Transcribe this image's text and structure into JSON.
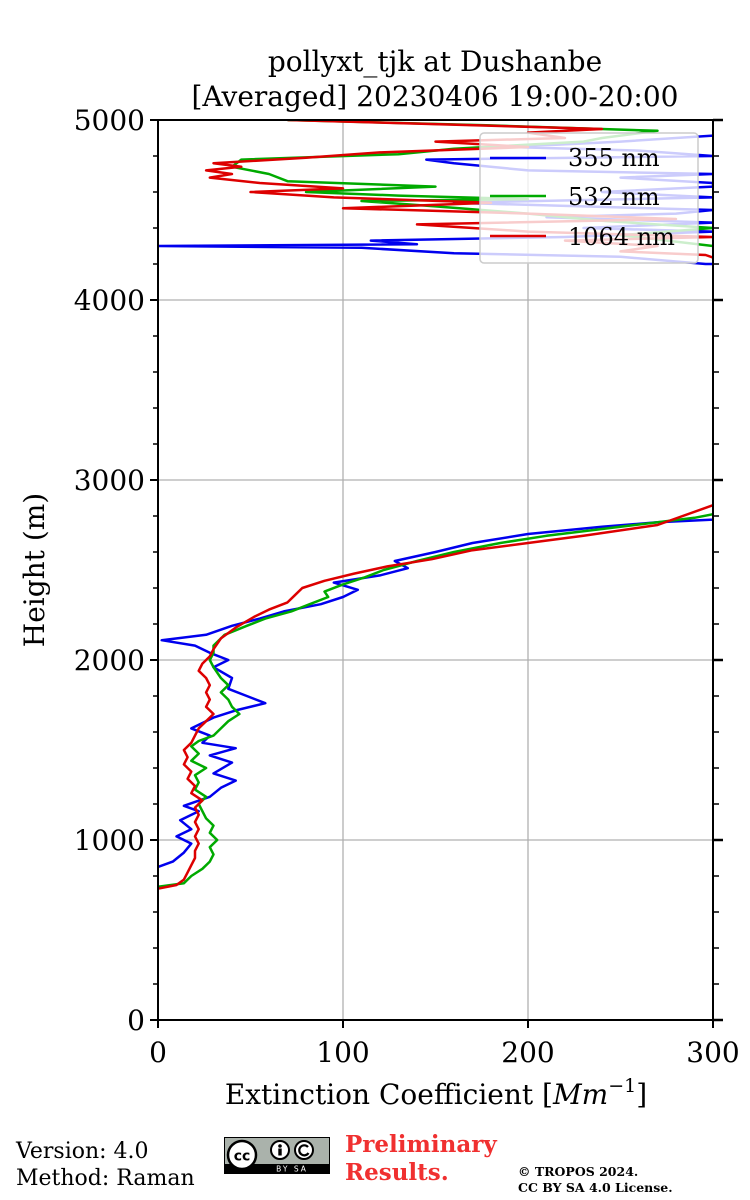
{
  "chart_data": {
    "type": "line",
    "title_line1": "pollyxt_tjk at Dushanbe",
    "title_line2": "[Averaged] 20230406 19:00-20:00",
    "xlabel_main": "Extinction Coefficient [",
    "xlabel_unit": "Mm",
    "xlabel_exp": "−1",
    "xlabel_close": "]",
    "ylabel": "Height (m)",
    "xlim": [
      0,
      300
    ],
    "ylim": [
      0,
      5000
    ],
    "x_ticks": [
      0,
      100,
      200,
      300
    ],
    "x_tick_labels": [
      "0",
      "100",
      "200",
      "300"
    ],
    "y_ticks": [
      0,
      1000,
      2000,
      3000,
      4000,
      5000
    ],
    "y_tick_labels": [
      "0",
      "1000",
      "2000",
      "3000",
      "4000",
      "5000"
    ],
    "y_minor_step": 200,
    "grid": true,
    "legend_position": "top-right",
    "series": [
      {
        "name": "355 nm",
        "color": "#0000ee",
        "points": [
          [
            0,
            850
          ],
          [
            8,
            880
          ],
          [
            14,
            930
          ],
          [
            18,
            980
          ],
          [
            10,
            1020
          ],
          [
            18,
            1060
          ],
          [
            12,
            1110
          ],
          [
            22,
            1160
          ],
          [
            14,
            1190
          ],
          [
            28,
            1240
          ],
          [
            34,
            1290
          ],
          [
            42,
            1330
          ],
          [
            30,
            1370
          ],
          [
            40,
            1430
          ],
          [
            28,
            1470
          ],
          [
            42,
            1510
          ],
          [
            24,
            1540
          ],
          [
            28,
            1580
          ],
          [
            18,
            1620
          ],
          [
            30,
            1680
          ],
          [
            42,
            1720
          ],
          [
            58,
            1760
          ],
          [
            48,
            1800
          ],
          [
            38,
            1840
          ],
          [
            40,
            1900
          ],
          [
            30,
            1960
          ],
          [
            38,
            2000
          ],
          [
            28,
            2040
          ],
          [
            20,
            2080
          ],
          [
            2,
            2110
          ],
          [
            26,
            2140
          ],
          [
            40,
            2190
          ],
          [
            55,
            2230
          ],
          [
            68,
            2270
          ],
          [
            88,
            2310
          ],
          [
            100,
            2350
          ],
          [
            108,
            2390
          ],
          [
            95,
            2430
          ],
          [
            120,
            2470
          ],
          [
            135,
            2510
          ],
          [
            128,
            2550
          ],
          [
            150,
            2600
          ],
          [
            170,
            2650
          ],
          [
            200,
            2700
          ],
          [
            240,
            2740
          ],
          [
            270,
            2765
          ],
          [
            300,
            2780
          ],
          [
            310,
            2790
          ],
          [
            310,
            4200
          ],
          [
            296,
            4200
          ],
          [
            250,
            4240
          ],
          [
            160,
            4260
          ],
          [
            110,
            4290
          ],
          [
            0,
            4300
          ],
          [
            140,
            4310
          ],
          [
            115,
            4330
          ],
          [
            220,
            4350
          ],
          [
            300,
            4380
          ],
          [
            230,
            4400
          ],
          [
            300,
            4430
          ],
          [
            210,
            4460
          ],
          [
            280,
            4480
          ],
          [
            300,
            4500
          ],
          [
            160,
            4540
          ],
          [
            300,
            4570
          ],
          [
            240,
            4600
          ],
          [
            300,
            4630
          ],
          [
            300,
            4650
          ],
          [
            250,
            4680
          ],
          [
            300,
            4700
          ],
          [
            200,
            4720
          ],
          [
            160,
            4760
          ],
          [
            145,
            4780
          ],
          [
            300,
            4800
          ],
          [
            260,
            4830
          ],
          [
            190,
            4850
          ],
          [
            250,
            4880
          ],
          [
            310,
            4920
          ],
          [
            310,
            4950
          ]
        ]
      },
      {
        "name": "532 nm",
        "color": "#00aa00",
        "points": [
          [
            0,
            740
          ],
          [
            14,
            760
          ],
          [
            18,
            800
          ],
          [
            24,
            840
          ],
          [
            28,
            880
          ],
          [
            30,
            920
          ],
          [
            28,
            960
          ],
          [
            32,
            1000
          ],
          [
            28,
            1040
          ],
          [
            30,
            1080
          ],
          [
            26,
            1120
          ],
          [
            24,
            1160
          ],
          [
            22,
            1200
          ],
          [
            26,
            1240
          ],
          [
            20,
            1280
          ],
          [
            22,
            1320
          ],
          [
            20,
            1360
          ],
          [
            26,
            1400
          ],
          [
            18,
            1440
          ],
          [
            22,
            1480
          ],
          [
            18,
            1520
          ],
          [
            22,
            1550
          ],
          [
            30,
            1580
          ],
          [
            34,
            1620
          ],
          [
            38,
            1660
          ],
          [
            44,
            1700
          ],
          [
            40,
            1740
          ],
          [
            38,
            1780
          ],
          [
            34,
            1820
          ],
          [
            38,
            1860
          ],
          [
            34,
            1900
          ],
          [
            30,
            1960
          ],
          [
            28,
            2000
          ],
          [
            30,
            2040
          ],
          [
            30,
            2080
          ],
          [
            36,
            2140
          ],
          [
            48,
            2190
          ],
          [
            58,
            2230
          ],
          [
            72,
            2270
          ],
          [
            82,
            2310
          ],
          [
            92,
            2350
          ],
          [
            90,
            2380
          ],
          [
            100,
            2420
          ],
          [
            112,
            2460
          ],
          [
            122,
            2500
          ],
          [
            140,
            2550
          ],
          [
            160,
            2600
          ],
          [
            185,
            2650
          ],
          [
            210,
            2690
          ],
          [
            250,
            2740
          ],
          [
            290,
            2790
          ],
          [
            300,
            2810
          ],
          [
            310,
            2820
          ],
          [
            310,
            4200
          ],
          [
            300,
            4300
          ],
          [
            250,
            4360
          ],
          [
            300,
            4400
          ],
          [
            240,
            4440
          ],
          [
            200,
            4480
          ],
          [
            150,
            4520
          ],
          [
            110,
            4550
          ],
          [
            200,
            4560
          ],
          [
            130,
            4580
          ],
          [
            80,
            4600
          ],
          [
            150,
            4630
          ],
          [
            70,
            4660
          ],
          [
            60,
            4700
          ],
          [
            40,
            4740
          ],
          [
            45,
            4780
          ],
          [
            130,
            4810
          ],
          [
            160,
            4840
          ],
          [
            230,
            4880
          ],
          [
            240,
            4900
          ],
          [
            270,
            4940
          ],
          [
            180,
            4970
          ],
          [
            70,
            5000
          ]
        ]
      },
      {
        "name": "1064 nm",
        "color": "#dd0000",
        "points": [
          [
            0,
            730
          ],
          [
            10,
            750
          ],
          [
            14,
            780
          ],
          [
            16,
            820
          ],
          [
            18,
            860
          ],
          [
            20,
            900
          ],
          [
            20,
            940
          ],
          [
            22,
            980
          ],
          [
            20,
            1020
          ],
          [
            22,
            1060
          ],
          [
            20,
            1100
          ],
          [
            22,
            1140
          ],
          [
            20,
            1180
          ],
          [
            24,
            1220
          ],
          [
            18,
            1260
          ],
          [
            20,
            1300
          ],
          [
            16,
            1340
          ],
          [
            18,
            1380
          ],
          [
            14,
            1420
          ],
          [
            16,
            1460
          ],
          [
            14,
            1500
          ],
          [
            18,
            1540
          ],
          [
            20,
            1580
          ],
          [
            22,
            1620
          ],
          [
            26,
            1660
          ],
          [
            30,
            1700
          ],
          [
            26,
            1740
          ],
          [
            28,
            1780
          ],
          [
            26,
            1820
          ],
          [
            28,
            1860
          ],
          [
            26,
            1900
          ],
          [
            22,
            1940
          ],
          [
            24,
            1980
          ],
          [
            28,
            2020
          ],
          [
            30,
            2060
          ],
          [
            34,
            2120
          ],
          [
            42,
            2180
          ],
          [
            52,
            2240
          ],
          [
            60,
            2280
          ],
          [
            70,
            2320
          ],
          [
            74,
            2360
          ],
          [
            78,
            2400
          ],
          [
            90,
            2440
          ],
          [
            106,
            2480
          ],
          [
            124,
            2520
          ],
          [
            148,
            2560
          ],
          [
            170,
            2610
          ],
          [
            200,
            2650
          ],
          [
            230,
            2690
          ],
          [
            270,
            2750
          ],
          [
            300,
            2860
          ],
          [
            310,
            2870
          ],
          [
            310,
            4200
          ],
          [
            296,
            4250
          ],
          [
            250,
            4270
          ],
          [
            270,
            4300
          ],
          [
            220,
            4330
          ],
          [
            300,
            4350
          ],
          [
            200,
            4380
          ],
          [
            140,
            4420
          ],
          [
            280,
            4450
          ],
          [
            200,
            4480
          ],
          [
            100,
            4510
          ],
          [
            180,
            4540
          ],
          [
            95,
            4570
          ],
          [
            50,
            4600
          ],
          [
            100,
            4620
          ],
          [
            55,
            4650
          ],
          [
            28,
            4680
          ],
          [
            40,
            4700
          ],
          [
            26,
            4720
          ],
          [
            45,
            4740
          ],
          [
            30,
            4760
          ],
          [
            80,
            4790
          ],
          [
            120,
            4820
          ],
          [
            200,
            4850
          ],
          [
            150,
            4880
          ],
          [
            220,
            4900
          ],
          [
            200,
            4930
          ],
          [
            240,
            4950
          ],
          [
            140,
            4980
          ],
          [
            70,
            5000
          ]
        ]
      }
    ]
  },
  "footer": {
    "version": "Version: 4.0",
    "method": "Method: Raman",
    "preliminary_line1": "Preliminary",
    "preliminary_line2": "Results.",
    "copyright_line1": "© TROPOS 2024.",
    "copyright_line2": "CC BY SA 4.0 License.",
    "cc_badge_text": "BY SA",
    "cc_badge_cc": "cc"
  }
}
